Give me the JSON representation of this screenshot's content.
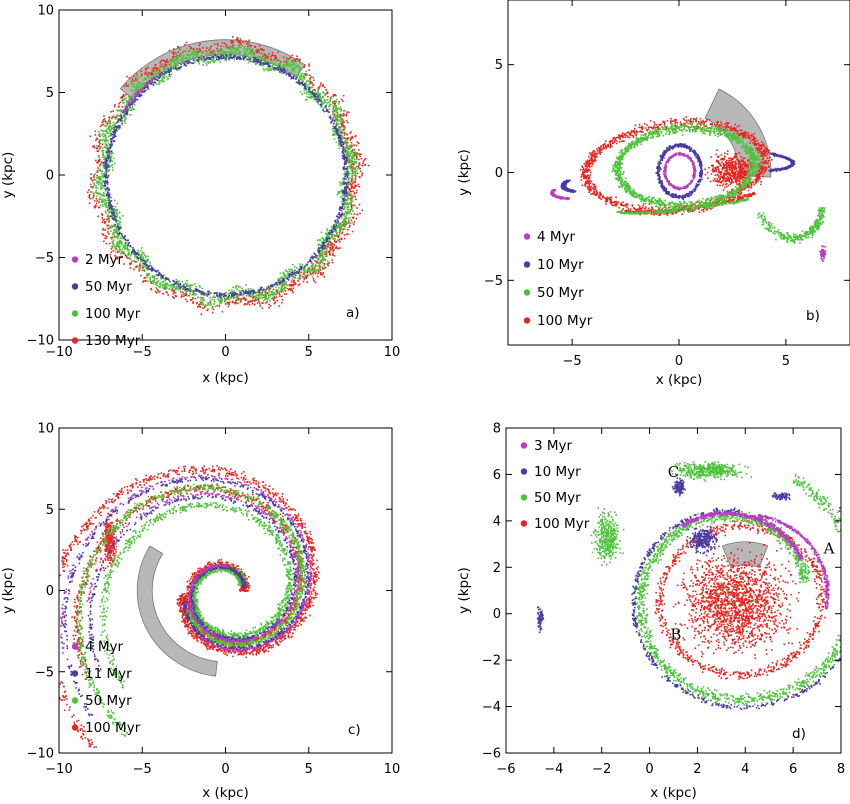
{
  "figure": {
    "colors": {
      "magenta": "#b93cc4",
      "blue": "#4a3aa6",
      "green": "#4cc43a",
      "red": "#e8251e",
      "gas_region": "#b8b8b8"
    }
  },
  "chart_data": [
    {
      "type": "scatter",
      "panel": "a)",
      "xlabel": "x (kpc)",
      "ylabel": "y (kpc)",
      "xlim": [
        -10,
        10
      ],
      "ylim": [
        -10,
        10
      ],
      "xticks": [
        -10,
        -5,
        0,
        5,
        10
      ],
      "yticks": [
        -10,
        -5,
        0,
        5,
        10
      ],
      "legend_position": "bottom-left",
      "series": [
        {
          "name": "2 Myr",
          "color": "#b93cc4"
        },
        {
          "name": "50 Myr",
          "color": "#4a3aa6"
        },
        {
          "name": "100 Myr",
          "color": "#4cc43a"
        },
        {
          "name": "130 Myr",
          "color": "#e8251e"
        }
      ]
    },
    {
      "type": "scatter",
      "panel": "b)",
      "xlabel": "x (kpc)",
      "ylabel": "y (kpc)",
      "xlim": [
        -8,
        8
      ],
      "ylim": [
        -8,
        8
      ],
      "xticks": [
        -5,
        0,
        5
      ],
      "yticks": [
        -5,
        0,
        5
      ],
      "legend_position": "bottom-left",
      "series": [
        {
          "name": "4 Myr",
          "color": "#b93cc4"
        },
        {
          "name": "10 Myr",
          "color": "#4a3aa6"
        },
        {
          "name": "50 Myr",
          "color": "#4cc43a"
        },
        {
          "name": "100 Myr",
          "color": "#e8251e"
        }
      ]
    },
    {
      "type": "scatter",
      "panel": "c)",
      "xlabel": "x (kpc)",
      "ylabel": "y (kpc)",
      "xlim": [
        -10,
        10
      ],
      "ylim": [
        -10,
        10
      ],
      "xticks": [
        -10,
        -5,
        0,
        5,
        10
      ],
      "yticks": [
        -10,
        -5,
        0,
        5,
        10
      ],
      "legend_position": "bottom-left",
      "series": [
        {
          "name": "4 Myr",
          "color": "#b93cc4"
        },
        {
          "name": "11 Myr",
          "color": "#4a3aa6"
        },
        {
          "name": "50 Myr",
          "color": "#4cc43a"
        },
        {
          "name": "100 Myr",
          "color": "#e8251e"
        }
      ]
    },
    {
      "type": "scatter",
      "panel": "d)",
      "xlabel": "x (kpc)",
      "ylabel": "y (kpc)",
      "xlim": [
        -6,
        8
      ],
      "ylim": [
        -6,
        8
      ],
      "xticks": [
        -6,
        -4,
        -2,
        0,
        2,
        4,
        6,
        8
      ],
      "yticks": [
        -6,
        -4,
        -2,
        0,
        2,
        4,
        6,
        8
      ],
      "legend_position": "top-left",
      "annotations": [
        {
          "text": "A",
          "x": 7.5,
          "y": 2.6
        },
        {
          "text": "B",
          "x": 1.1,
          "y": -1.1
        },
        {
          "text": "C",
          "x": 1.0,
          "y": 5.9
        }
      ],
      "series": [
        {
          "name": "3 Myr",
          "color": "#b93cc4"
        },
        {
          "name": "10 Myr",
          "color": "#4a3aa6"
        },
        {
          "name": "50 Myr",
          "color": "#4cc43a"
        },
        {
          "name": "100 Myr",
          "color": "#e8251e"
        }
      ]
    }
  ]
}
